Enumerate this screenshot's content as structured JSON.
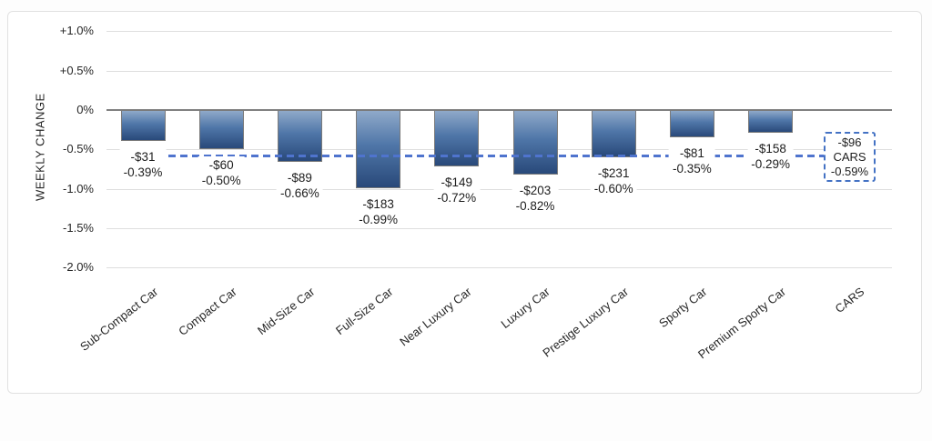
{
  "chart_data": {
    "type": "bar",
    "title": "",
    "xlabel": "",
    "ylabel": "WEEKLY CHANGE",
    "ylim": [
      -2.0,
      1.0
    ],
    "grid": true,
    "legend": "none",
    "y_ticks": [
      {
        "label": "+1.0%",
        "value": 1.0
      },
      {
        "label": "+0.5%",
        "value": 0.5
      },
      {
        "label": "0%",
        "value": 0.0
      },
      {
        "label": "-0.5%",
        "value": -0.5
      },
      {
        "label": "-1.0%",
        "value": -1.0
      },
      {
        "label": "-1.5%",
        "value": -1.5
      },
      {
        "label": "-2.0%",
        "value": -2.0
      }
    ],
    "categories": [
      "Sub-Compact Car",
      "Compact Car",
      "Mid-Size Car",
      "Full-Size Car",
      "Near Luxury Car",
      "Luxury Car",
      "Prestige Luxury Car",
      "Sporty Car",
      "Premium Sporty Car",
      "CARS"
    ],
    "bars": [
      {
        "category": "Sub-Compact Car",
        "dollar": "-$31",
        "pct": "-0.39%",
        "value": -0.39
      },
      {
        "category": "Compact Car",
        "dollar": "-$60",
        "pct": "-0.50%",
        "value": -0.5
      },
      {
        "category": "Mid-Size Car",
        "dollar": "-$89",
        "pct": "-0.66%",
        "value": -0.66
      },
      {
        "category": "Full-Size Car",
        "dollar": "-$183",
        "pct": "-0.99%",
        "value": -0.99
      },
      {
        "category": "Near Luxury Car",
        "dollar": "-$149",
        "pct": "-0.72%",
        "value": -0.72
      },
      {
        "category": "Luxury Car",
        "dollar": "-$203",
        "pct": "-0.82%",
        "value": -0.82
      },
      {
        "category": "Prestige Luxury Car",
        "dollar": "-$231",
        "pct": "-0.60%",
        "value": -0.6
      },
      {
        "category": "Sporty Car",
        "dollar": "-$81",
        "pct": "-0.35%",
        "value": -0.35
      },
      {
        "category": "Premium Sporty Car",
        "dollar": "-$158",
        "pct": "-0.29%",
        "value": -0.29
      }
    ],
    "reference": {
      "category": "CARS",
      "dollar": "-$96",
      "label": "CARS",
      "pct": "-0.59%",
      "value": -0.59,
      "style": "dashed-line-with-box"
    },
    "colors": {
      "bar_gradient_top": "#8FA9C9",
      "bar_gradient_bottom": "#29497A",
      "bar_border": "#7A7A7A",
      "reference_line": "#4F74CE",
      "reference_box_border": "#4472C4",
      "gridline": "#DEDEDE",
      "zero_line": "#808080",
      "text": "#262626",
      "panel_border": "#E1E1E1"
    }
  }
}
